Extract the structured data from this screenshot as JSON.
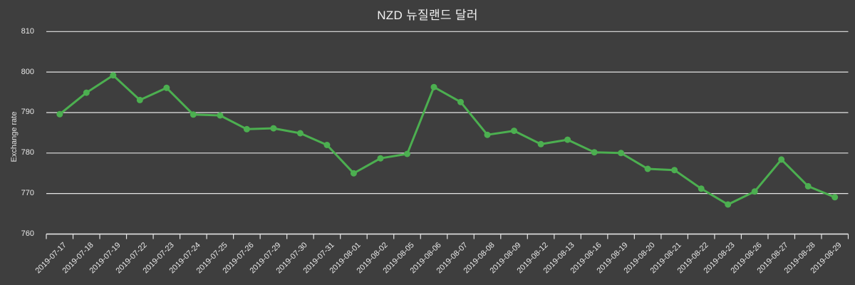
{
  "title": "NZD 뉴질랜드 달러",
  "colors": {
    "background": "#3e3e3e",
    "line": "#4caf50",
    "point": "#4caf50",
    "grid": "#e4e4e4",
    "axis": "#e4e4e4",
    "text": "#e8e8e8",
    "title_text": "#f2f2f2"
  },
  "chart_data": {
    "type": "line",
    "title": "NZD 뉴질랜드 달러",
    "xlabel": "",
    "ylabel": "Exchange rate",
    "legend": "none",
    "grid": "horizontal",
    "ylim": [
      760,
      810
    ],
    "y_ticks": [
      760,
      770,
      780,
      790,
      800,
      810
    ],
    "x": [
      "2019-07-17",
      "2019-07-18",
      "2019-07-19",
      "2019-07-22",
      "2019-07-23",
      "2019-07-24",
      "2019-07-25",
      "2019-07-26",
      "2019-07-29",
      "2019-07-30",
      "2019-07-31",
      "2019-08-01",
      "2019-08-02",
      "2019-08-05",
      "2019-08-06",
      "2019-08-07",
      "2019-08-08",
      "2019-08-09",
      "2019-08-12",
      "2019-08-13",
      "2019-08-16",
      "2019-08-19",
      "2019-08-20",
      "2019-08-21",
      "2019-08-22",
      "2019-08-23",
      "2019-08-26",
      "2019-08-27",
      "2019-08-28",
      "2019-08-29"
    ],
    "series": [
      {
        "name": "NZD 뉴질랜드 달러",
        "values": [
          789.6,
          794.9,
          799.2,
          793.1,
          796.1,
          789.5,
          789.3,
          785.9,
          786.1,
          784.9,
          782.0,
          775.0,
          778.7,
          779.8,
          796.3,
          792.6,
          784.5,
          785.5,
          782.2,
          783.3,
          780.2,
          780.0,
          776.1,
          775.8,
          771.2,
          767.3,
          770.5,
          778.4,
          771.8,
          769.1
        ]
      }
    ]
  }
}
